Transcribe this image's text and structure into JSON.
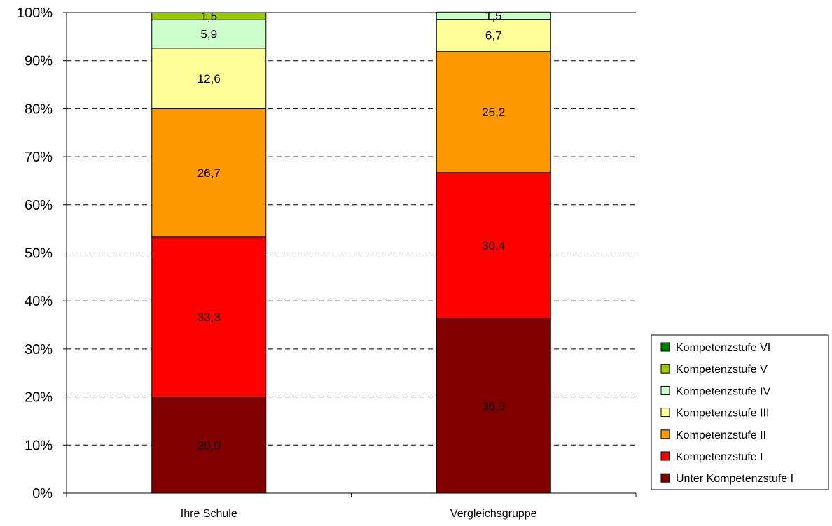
{
  "chart_data": {
    "type": "bar",
    "stacked": true,
    "categories": [
      "Ihre Schule",
      "Vergleichsgruppe"
    ],
    "series": [
      {
        "name": "Unter Kompetenzstufe I",
        "color": "#800000",
        "values": [
          20.0,
          36.3
        ],
        "labels": [
          "20,0",
          "36,3"
        ]
      },
      {
        "name": "Kompetenzstufe I",
        "color": "#ff0000",
        "values": [
          33.3,
          30.4
        ],
        "labels": [
          "33,3",
          "30,4"
        ]
      },
      {
        "name": "Kompetenzstufe II",
        "color": "#ff9900",
        "values": [
          26.7,
          25.2
        ],
        "labels": [
          "26,7",
          "25,2"
        ]
      },
      {
        "name": "Kompetenzstufe III",
        "color": "#ffff99",
        "values": [
          12.6,
          6.7
        ],
        "labels": [
          "12,6",
          "6,7"
        ]
      },
      {
        "name": "Kompetenzstufe IV",
        "color": "#ccffcc",
        "values": [
          5.9,
          1.5
        ],
        "labels": [
          "5,9",
          "1,5"
        ]
      },
      {
        "name": "Kompetenzstufe V",
        "color": "#99cc00",
        "values": [
          1.5,
          0.0
        ],
        "labels": [
          "1,5",
          ""
        ]
      },
      {
        "name": "Kompetenzstufe VI",
        "color": "#008000",
        "values": [
          0.0,
          0.0
        ],
        "labels": [
          "",
          ""
        ]
      }
    ],
    "ylim": [
      0,
      100
    ],
    "yticks": [
      "0%",
      "10%",
      "20%",
      "30%",
      "40%",
      "50%",
      "60%",
      "70%",
      "80%",
      "90%",
      "100%"
    ],
    "grid": "horizontal-dashed",
    "legend_position": "bottom-right"
  }
}
